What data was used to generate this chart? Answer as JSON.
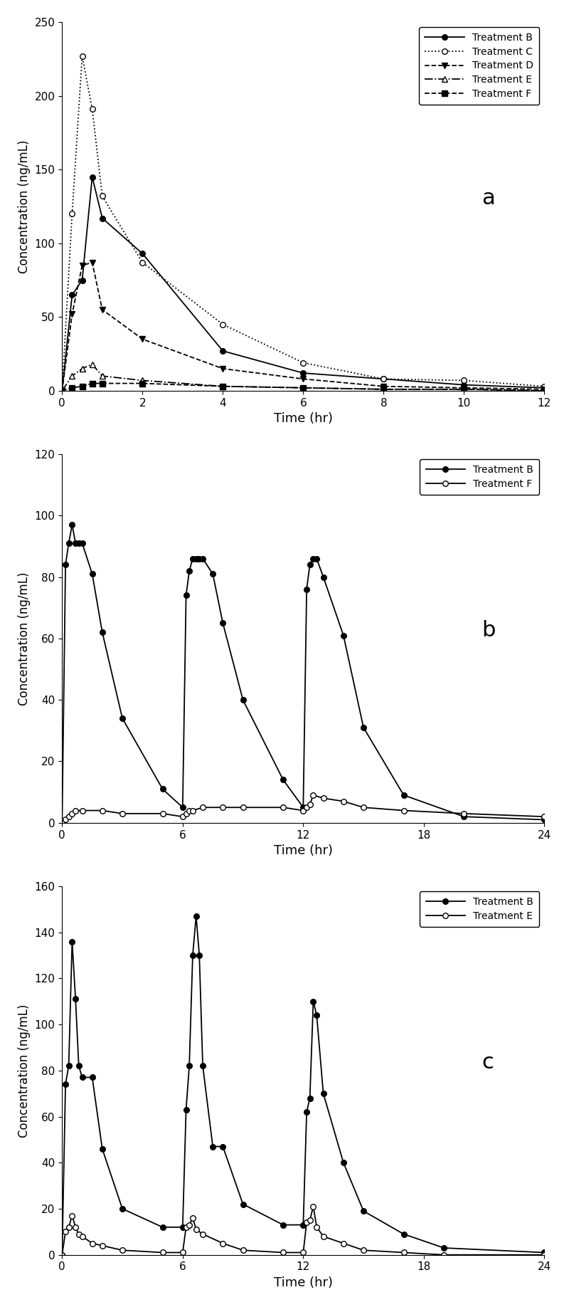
{
  "panel_a": {
    "title_label": "a",
    "ylabel": "Concentration (ng/mL)",
    "xlabel": "Time (hr)",
    "xlim": [
      0,
      12
    ],
    "ylim": [
      0,
      250
    ],
    "yticks": [
      0,
      50,
      100,
      150,
      200,
      250
    ],
    "xticks": [
      0,
      2,
      4,
      6,
      8,
      10,
      12
    ],
    "treatment_B": {
      "x": [
        0,
        0.25,
        0.5,
        0.75,
        1.0,
        2.0,
        4.0,
        6.0,
        8.0,
        10.0,
        12.0
      ],
      "y": [
        0,
        65,
        75,
        145,
        117,
        93,
        27,
        12,
        8,
        4,
        2
      ],
      "marker": "o",
      "fillstyle": "full",
      "linestyle": "-",
      "label": "Treatment B"
    },
    "treatment_C": {
      "x": [
        0,
        0.25,
        0.5,
        0.75,
        1.0,
        2.0,
        4.0,
        6.0,
        8.0,
        10.0,
        12.0
      ],
      "y": [
        0,
        120,
        227,
        191,
        132,
        87,
        45,
        19,
        8,
        7,
        3
      ],
      "marker": "o",
      "fillstyle": "none",
      "linestyle": ":",
      "label": "Treatment C"
    },
    "treatment_D": {
      "x": [
        0,
        0.25,
        0.5,
        0.75,
        1.0,
        2.0,
        4.0,
        6.0,
        8.0,
        10.0,
        12.0
      ],
      "y": [
        0,
        52,
        85,
        87,
        55,
        35,
        15,
        8,
        3,
        2,
        1
      ],
      "marker": "v",
      "fillstyle": "full",
      "linestyle": "--",
      "label": "Treatment D"
    },
    "treatment_E": {
      "x": [
        0,
        0.25,
        0.5,
        0.75,
        1.0,
        2.0,
        4.0,
        6.0,
        8.0,
        10.0,
        12.0
      ],
      "y": [
        0,
        10,
        15,
        18,
        10,
        7,
        3,
        2,
        1,
        1,
        0
      ],
      "marker": "^",
      "fillstyle": "none",
      "linestyle": "-.",
      "label": "Treatment E"
    },
    "treatment_F": {
      "x": [
        0,
        0.25,
        0.5,
        0.75,
        1.0,
        2.0,
        4.0,
        6.0,
        8.0,
        10.0,
        12.0
      ],
      "y": [
        0,
        2,
        3,
        5,
        5,
        5,
        3,
        2,
        1,
        1,
        0
      ],
      "marker": "s",
      "fillstyle": "full",
      "linestyle": "--",
      "label": "Treatment F"
    }
  },
  "panel_b": {
    "title_label": "b",
    "ylabel": "Concentration (ng/mL)",
    "xlabel": "Time (hr)",
    "xlim": [
      0,
      24
    ],
    "ylim": [
      0,
      120
    ],
    "yticks": [
      0,
      20,
      40,
      60,
      80,
      100,
      120
    ],
    "xticks": [
      0,
      6,
      12,
      18,
      24
    ],
    "treatment_B": {
      "x": [
        0,
        0.17,
        0.33,
        0.5,
        0.67,
        0.83,
        1.0,
        1.5,
        2.0,
        3.0,
        5.0,
        6.0,
        6.17,
        6.33,
        6.5,
        6.67,
        6.83,
        7.0,
        7.5,
        8.0,
        9.0,
        11.0,
        12.0,
        12.17,
        12.33,
        12.5,
        12.67,
        13.0,
        14.0,
        15.0,
        17.0,
        20.0,
        24.0
      ],
      "y": [
        0,
        84,
        91,
        97,
        91,
        91,
        91,
        81,
        62,
        34,
        11,
        5,
        74,
        82,
        86,
        86,
        86,
        86,
        81,
        65,
        40,
        14,
        5,
        76,
        84,
        86,
        86,
        80,
        61,
        31,
        9,
        2,
        1
      ],
      "marker": "o",
      "fillstyle": "full",
      "linestyle": "-",
      "label": "Treatment B"
    },
    "treatment_F": {
      "x": [
        0,
        0.17,
        0.33,
        0.5,
        0.67,
        1.0,
        2.0,
        3.0,
        5.0,
        6.0,
        6.17,
        6.33,
        6.5,
        7.0,
        8.0,
        9.0,
        11.0,
        12.0,
        12.17,
        12.33,
        12.5,
        13.0,
        14.0,
        15.0,
        17.0,
        20.0,
        24.0
      ],
      "y": [
        0,
        1,
        2,
        3,
        4,
        4,
        4,
        3,
        3,
        2,
        3,
        4,
        4,
        5,
        5,
        5,
        5,
        4,
        5,
        6,
        9,
        8,
        7,
        5,
        4,
        3,
        2
      ],
      "marker": "o",
      "fillstyle": "none",
      "linestyle": "-",
      "label": "Treatment F"
    }
  },
  "panel_c": {
    "title_label": "c",
    "ylabel": "Concentration (ng/mL)",
    "xlabel": "Time (hr)",
    "xlim": [
      0,
      24
    ],
    "ylim": [
      0,
      160
    ],
    "yticks": [
      0,
      20,
      40,
      60,
      80,
      100,
      120,
      140,
      160
    ],
    "xticks": [
      0,
      6,
      12,
      18,
      24
    ],
    "treatment_B": {
      "x": [
        0,
        0.17,
        0.33,
        0.5,
        0.67,
        0.83,
        1.0,
        1.5,
        2.0,
        3.0,
        5.0,
        6.0,
        6.17,
        6.33,
        6.5,
        6.67,
        6.83,
        7.0,
        7.5,
        8.0,
        9.0,
        11.0,
        12.0,
        12.17,
        12.33,
        12.5,
        12.67,
        13.0,
        14.0,
        15.0,
        17.0,
        19.0,
        24.0
      ],
      "y": [
        0,
        74,
        82,
        136,
        111,
        82,
        77,
        77,
        46,
        20,
        12,
        12,
        63,
        82,
        130,
        147,
        130,
        82,
        47,
        47,
        22,
        13,
        13,
        62,
        68,
        110,
        104,
        70,
        40,
        19,
        9,
        3,
        1
      ],
      "marker": "o",
      "fillstyle": "full",
      "linestyle": "-",
      "label": "Treatment B"
    },
    "treatment_E": {
      "x": [
        0,
        0.17,
        0.33,
        0.5,
        0.67,
        0.83,
        1.0,
        1.5,
        2.0,
        3.0,
        5.0,
        6.0,
        6.17,
        6.33,
        6.5,
        6.67,
        7.0,
        8.0,
        9.0,
        11.0,
        12.0,
        12.17,
        12.33,
        12.5,
        12.67,
        13.0,
        14.0,
        15.0,
        17.0,
        19.0,
        24.0
      ],
      "y": [
        0,
        10,
        12,
        17,
        12,
        9,
        8,
        5,
        4,
        2,
        1,
        1,
        12,
        13,
        16,
        11,
        9,
        5,
        2,
        1,
        1,
        14,
        15,
        21,
        12,
        8,
        5,
        2,
        1,
        0,
        0
      ],
      "marker": "o",
      "fillstyle": "none",
      "linestyle": "-",
      "label": "Treatment E"
    }
  }
}
